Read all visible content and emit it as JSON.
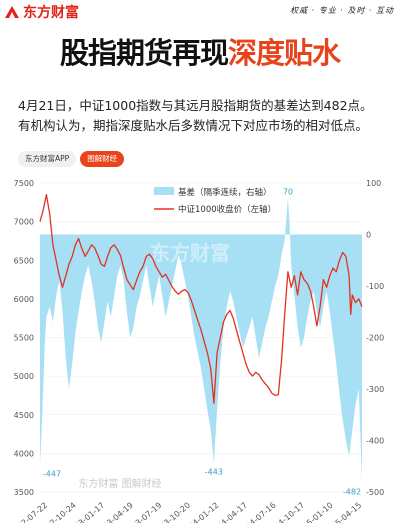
{
  "brand": {
    "name": "东方财富",
    "slogan": "权威 · 专业 · 及时 · 互动",
    "accent": "#e8431a"
  },
  "headline": {
    "part1": "股指期货再现",
    "part2": "深度贴水"
  },
  "description": {
    "line1": "4月21日，中证1000指数与其远月股指期货的基差达到482点。",
    "line2": "有机构认为，期指深度贴水后多数情况下对应市场的相对低点。"
  },
  "tags": {
    "app": "东方财富APP",
    "section": "图解财经"
  },
  "watermark": {
    "top": "东方财富",
    "bottom": "东方财富 图解财经"
  },
  "chart_data": {
    "type": "area+line",
    "left_axis": {
      "ticks": [
        3500,
        4000,
        4500,
        5000,
        5500,
        6000,
        6500,
        7000,
        7500
      ],
      "min": 3500,
      "max": 7500
    },
    "right_axis": {
      "ticks": [
        100,
        0,
        -100,
        -200,
        -300,
        -400,
        -500
      ],
      "min": -500,
      "max": 100
    },
    "x_ticks": [
      "2022-07-22",
      "2022-10-24",
      "2023-01-17",
      "2023-04-19",
      "2023-07-19",
      "2023-10-20",
      "2024-01-12",
      "2024-04-17",
      "2024-07-16",
      "2024-10-17",
      "2025-01-10",
      "2025-04-15"
    ],
    "legend": [
      "基差（隔季连续，右轴）",
      "中证1000收盘价（左轴）"
    ],
    "annotations": [
      {
        "text": "-447",
        "x_index": 0.0
      },
      {
        "text": "70",
        "x_index": 0.77
      },
      {
        "text": "-443",
        "x_index": 0.54
      },
      {
        "text": "-482",
        "x_index": 1.0
      }
    ],
    "basis_series": {
      "name": "基差（隔季连续，右轴）",
      "color": "#a7e0f5",
      "points": [
        [
          0,
          -447
        ],
        [
          0.005,
          -380
        ],
        [
          0.01,
          -300
        ],
        [
          0.015,
          -210
        ],
        [
          0.02,
          -160
        ],
        [
          0.03,
          -140
        ],
        [
          0.04,
          -170
        ],
        [
          0.05,
          -120
        ],
        [
          0.06,
          -90
        ],
        [
          0.07,
          -150
        ],
        [
          0.08,
          -240
        ],
        [
          0.09,
          -300
        ],
        [
          0.1,
          -250
        ],
        [
          0.11,
          -190
        ],
        [
          0.12,
          -150
        ],
        [
          0.13,
          -110
        ],
        [
          0.14,
          -80
        ],
        [
          0.15,
          -60
        ],
        [
          0.16,
          -90
        ],
        [
          0.17,
          -130
        ],
        [
          0.18,
          -180
        ],
        [
          0.19,
          -210
        ],
        [
          0.2,
          -170
        ],
        [
          0.21,
          -130
        ],
        [
          0.22,
          -160
        ],
        [
          0.23,
          -120
        ],
        [
          0.24,
          -80
        ],
        [
          0.25,
          -60
        ],
        [
          0.26,
          -90
        ],
        [
          0.27,
          -150
        ],
        [
          0.28,
          -200
        ],
        [
          0.29,
          -180
        ],
        [
          0.3,
          -140
        ],
        [
          0.31,
          -120
        ],
        [
          0.32,
          -90
        ],
        [
          0.33,
          -60
        ],
        [
          0.34,
          -100
        ],
        [
          0.35,
          -140
        ],
        [
          0.36,
          -110
        ],
        [
          0.37,
          -80
        ],
        [
          0.38,
          -120
        ],
        [
          0.39,
          -160
        ],
        [
          0.4,
          -130
        ],
        [
          0.41,
          -100
        ],
        [
          0.42,
          -70
        ],
        [
          0.43,
          -40
        ],
        [
          0.44,
          -60
        ],
        [
          0.45,
          -90
        ],
        [
          0.46,
          -120
        ],
        [
          0.47,
          -160
        ],
        [
          0.48,
          -200
        ],
        [
          0.49,
          -230
        ],
        [
          0.5,
          -260
        ],
        [
          0.51,
          -300
        ],
        [
          0.52,
          -340
        ],
        [
          0.53,
          -380
        ],
        [
          0.54,
          -443
        ],
        [
          0.55,
          -340
        ],
        [
          0.56,
          -250
        ],
        [
          0.57,
          -180
        ],
        [
          0.58,
          -140
        ],
        [
          0.59,
          -110
        ],
        [
          0.6,
          -130
        ],
        [
          0.61,
          -160
        ],
        [
          0.62,
          -190
        ],
        [
          0.63,
          -220
        ],
        [
          0.64,
          -200
        ],
        [
          0.65,
          -180
        ],
        [
          0.66,
          -160
        ],
        [
          0.67,
          -200
        ],
        [
          0.68,
          -240
        ],
        [
          0.69,
          -210
        ],
        [
          0.7,
          -180
        ],
        [
          0.71,
          -160
        ],
        [
          0.72,
          -130
        ],
        [
          0.73,
          -100
        ],
        [
          0.74,
          -80
        ],
        [
          0.75,
          -40
        ],
        [
          0.76,
          -10
        ],
        [
          0.765,
          30
        ],
        [
          0.77,
          70
        ],
        [
          0.775,
          20
        ],
        [
          0.78,
          -60
        ],
        [
          0.79,
          -120
        ],
        [
          0.8,
          -180
        ],
        [
          0.81,
          -220
        ],
        [
          0.82,
          -200
        ],
        [
          0.83,
          -160
        ],
        [
          0.84,
          -130
        ],
        [
          0.85,
          -110
        ],
        [
          0.86,
          -150
        ],
        [
          0.87,
          -180
        ],
        [
          0.88,
          -140
        ],
        [
          0.89,
          -110
        ],
        [
          0.9,
          -150
        ],
        [
          0.91,
          -200
        ],
        [
          0.92,
          -250
        ],
        [
          0.93,
          -310
        ],
        [
          0.94,
          -360
        ],
        [
          0.95,
          -400
        ],
        [
          0.96,
          -430
        ],
        [
          0.97,
          -380
        ],
        [
          0.98,
          -330
        ],
        [
          0.99,
          -300
        ],
        [
          1.0,
          -482
        ]
      ]
    },
    "price_series": {
      "name": "中证1000收盘价（左轴）",
      "color": "#e23222",
      "points": [
        [
          0,
          7000
        ],
        [
          0.01,
          7150
        ],
        [
          0.02,
          7350
        ],
        [
          0.03,
          7100
        ],
        [
          0.04,
          6700
        ],
        [
          0.05,
          6500
        ],
        [
          0.06,
          6300
        ],
        [
          0.07,
          6150
        ],
        [
          0.08,
          6300
        ],
        [
          0.09,
          6450
        ],
        [
          0.1,
          6550
        ],
        [
          0.11,
          6700
        ],
        [
          0.12,
          6780
        ],
        [
          0.13,
          6650
        ],
        [
          0.14,
          6550
        ],
        [
          0.15,
          6620
        ],
        [
          0.16,
          6700
        ],
        [
          0.17,
          6660
        ],
        [
          0.18,
          6560
        ],
        [
          0.19,
          6450
        ],
        [
          0.2,
          6420
        ],
        [
          0.21,
          6550
        ],
        [
          0.22,
          6660
        ],
        [
          0.23,
          6700
        ],
        [
          0.24,
          6640
        ],
        [
          0.25,
          6560
        ],
        [
          0.26,
          6400
        ],
        [
          0.27,
          6250
        ],
        [
          0.28,
          6180
        ],
        [
          0.29,
          6120
        ],
        [
          0.3,
          6240
        ],
        [
          0.31,
          6350
        ],
        [
          0.32,
          6420
        ],
        [
          0.33,
          6550
        ],
        [
          0.34,
          6580
        ],
        [
          0.35,
          6520
        ],
        [
          0.36,
          6420
        ],
        [
          0.37,
          6350
        ],
        [
          0.38,
          6280
        ],
        [
          0.39,
          6320
        ],
        [
          0.4,
          6240
        ],
        [
          0.41,
          6160
        ],
        [
          0.42,
          6100
        ],
        [
          0.43,
          6060
        ],
        [
          0.44,
          6100
        ],
        [
          0.45,
          6120
        ],
        [
          0.46,
          6080
        ],
        [
          0.47,
          5980
        ],
        [
          0.48,
          5850
        ],
        [
          0.49,
          5720
        ],
        [
          0.5,
          5600
        ],
        [
          0.51,
          5450
        ],
        [
          0.52,
          5300
        ],
        [
          0.53,
          5100
        ],
        [
          0.54,
          4650
        ],
        [
          0.55,
          5300
        ],
        [
          0.56,
          5500
        ],
        [
          0.57,
          5700
        ],
        [
          0.58,
          5800
        ],
        [
          0.59,
          5850
        ],
        [
          0.6,
          5750
        ],
        [
          0.61,
          5600
        ],
        [
          0.62,
          5450
        ],
        [
          0.63,
          5300
        ],
        [
          0.64,
          5150
        ],
        [
          0.65,
          5050
        ],
        [
          0.66,
          5000
        ],
        [
          0.67,
          5050
        ],
        [
          0.68,
          5020
        ],
        [
          0.69,
          4950
        ],
        [
          0.7,
          4900
        ],
        [
          0.71,
          4850
        ],
        [
          0.72,
          4780
        ],
        [
          0.73,
          4750
        ],
        [
          0.74,
          4760
        ],
        [
          0.75,
          5200
        ],
        [
          0.76,
          5800
        ],
        [
          0.77,
          6350
        ],
        [
          0.78,
          6150
        ],
        [
          0.79,
          6300
        ],
        [
          0.8,
          6050
        ],
        [
          0.81,
          6350
        ],
        [
          0.82,
          6250
        ],
        [
          0.83,
          6200
        ],
        [
          0.84,
          6100
        ],
        [
          0.85,
          5900
        ],
        [
          0.86,
          5650
        ],
        [
          0.87,
          5900
        ],
        [
          0.88,
          6250
        ],
        [
          0.89,
          6150
        ],
        [
          0.9,
          6300
        ],
        [
          0.91,
          6400
        ],
        [
          0.92,
          6350
        ],
        [
          0.93,
          6500
        ],
        [
          0.94,
          6600
        ],
        [
          0.95,
          6550
        ],
        [
          0.96,
          6300
        ],
        [
          0.965,
          5800
        ],
        [
          0.97,
          6050
        ],
        [
          0.98,
          5950
        ],
        [
          0.99,
          6000
        ],
        [
          1.0,
          5900
        ]
      ]
    }
  }
}
